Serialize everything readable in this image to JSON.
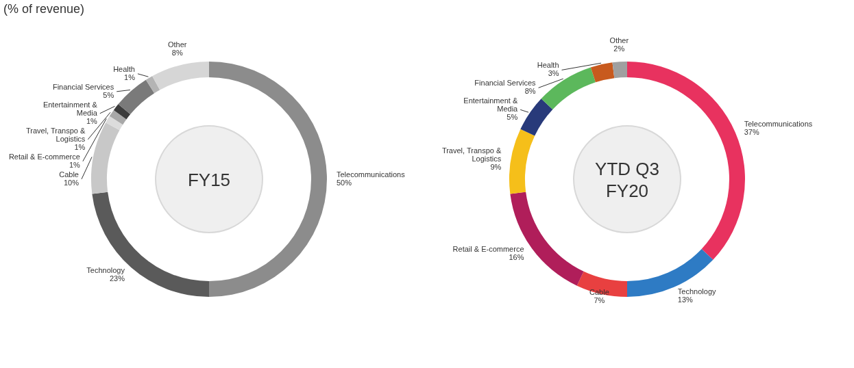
{
  "chart_data": [
    {
      "type": "donut",
      "title": "FY15",
      "annotations": [
        "(% of revenue)"
      ],
      "value_labels": [
        "50%",
        "23%",
        "10%",
        "1%",
        "1%",
        "1%",
        "5%",
        "1%",
        "8%"
      ],
      "categories": [
        "Telecommunications",
        "Technology",
        "Cable",
        "Retail & E-commerce",
        "Travel, Transpo & Logistics",
        "Entertainment & Media",
        "Financial Services",
        "Health",
        "Other"
      ],
      "values": [
        50,
        23,
        10,
        1,
        1,
        1,
        5,
        1,
        8
      ],
      "colors": [
        "#8c8c8c",
        "#5a5a5a",
        "#c8c8c8",
        "#dcdcdc",
        "#a8a8a8",
        "#3c3c3c",
        "#7a7a7a",
        "#b4b4b4",
        "#d6d6d6"
      ]
    },
    {
      "type": "donut",
      "title": "YTD Q3 FY20",
      "value_labels": [
        "37%",
        "13%",
        "7%",
        "16%",
        "9%",
        "5%",
        "8%",
        "3%",
        "2%"
      ],
      "categories": [
        "Telecommunications",
        "Technology",
        "Cable",
        "Retail & E-commerce",
        "Travel, Transpo & Logistics",
        "Entertainment & Media",
        "Financial Services",
        "Health",
        "Other"
      ],
      "values": [
        37,
        13,
        7,
        16,
        9,
        5,
        8,
        3,
        2
      ],
      "colors": [
        "#e8325f",
        "#2e7bc4",
        "#e84040",
        "#b01e5a",
        "#f5bf1a",
        "#283a7a",
        "#5cb85c",
        "#c85a1e",
        "#a0a0a0"
      ]
    }
  ]
}
